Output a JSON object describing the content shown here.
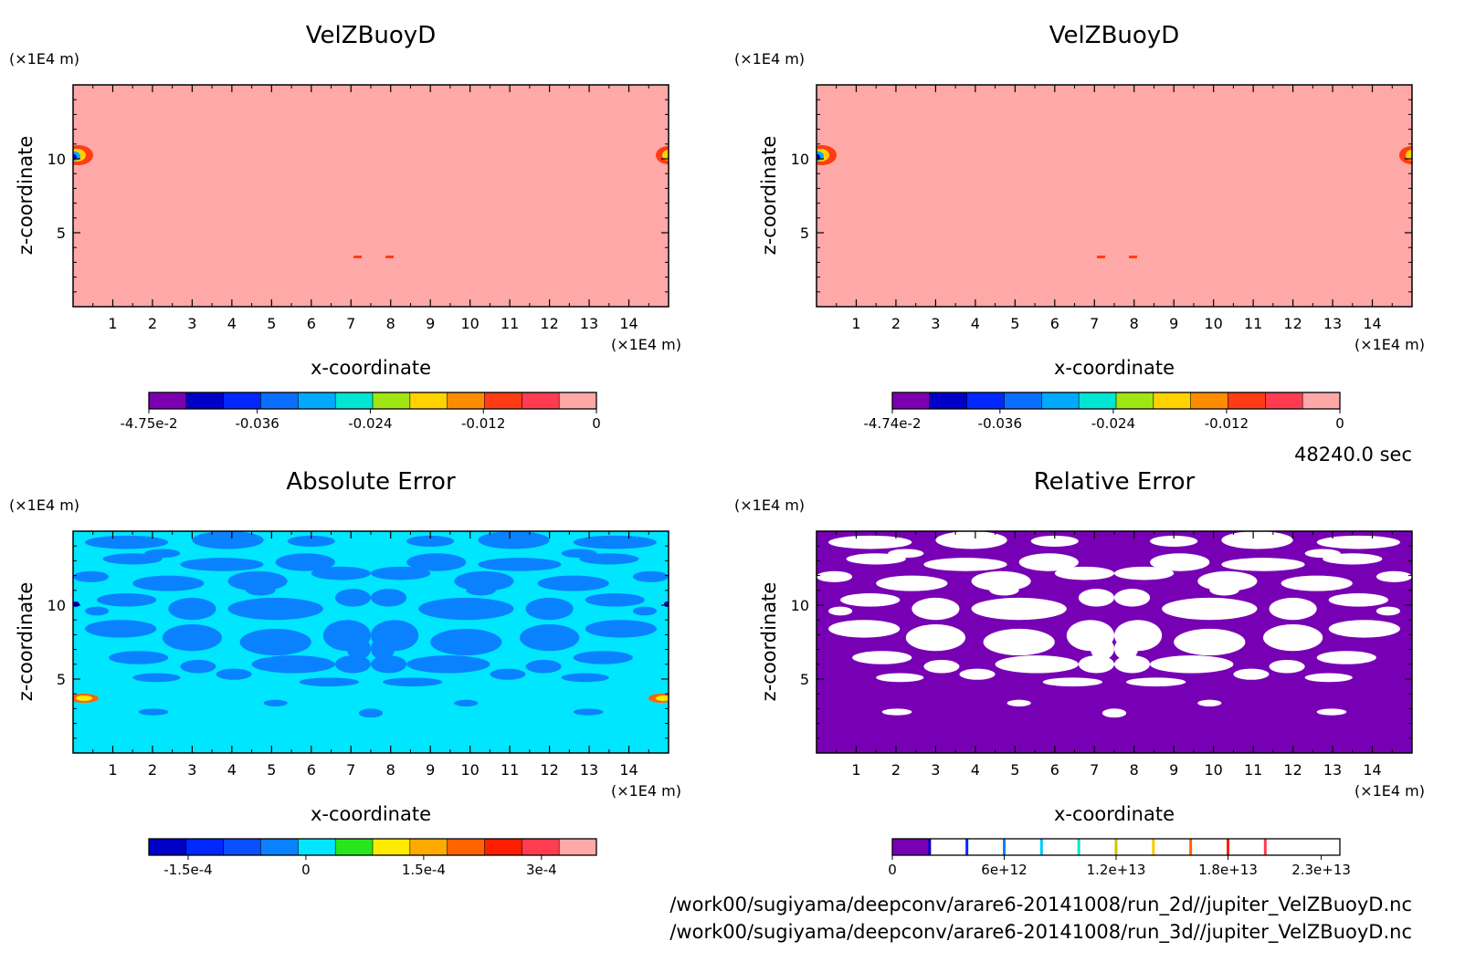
{
  "chart_data": [
    {
      "type": "heatmap",
      "title": "VelZBuoyD",
      "xlabel": "x-coordinate",
      "ylabel": "z-coordinate",
      "x_unit": "(×1E4 m)",
      "y_unit": "(×1E4 m)",
      "xlim": [
        0,
        15
      ],
      "ylim": [
        0,
        15
      ],
      "x_ticks": [
        "1",
        "2",
        "3",
        "4",
        "5",
        "6",
        "7",
        "8",
        "9",
        "10",
        "11",
        "12",
        "13",
        "14"
      ],
      "y_ticks": [
        "5",
        "10"
      ],
      "background_color": "#ffa8a8",
      "colorbar": {
        "colors": [
          "#7b00b0",
          "#0000c8",
          "#0028ff",
          "#0a6eff",
          "#00aaff",
          "#00e6d2",
          "#a0e614",
          "#ffd200",
          "#ff8c00",
          "#ff3c14",
          "#ff3c50",
          "#ffa8a8"
        ],
        "tick_labels": [
          "-4.75e-2",
          "-0.036",
          "-0.024",
          "-0.012",
          "0"
        ],
        "tick_values": [
          -0.0475,
          -0.036,
          -0.024,
          -0.012,
          0
        ]
      }
    },
    {
      "type": "heatmap",
      "title": "VelZBuoyD",
      "xlabel": "x-coordinate",
      "ylabel": "z-coordinate",
      "x_unit": "(×1E4 m)",
      "y_unit": "(×1E4 m)",
      "xlim": [
        0,
        15
      ],
      "ylim": [
        0,
        15
      ],
      "x_ticks": [
        "1",
        "2",
        "3",
        "4",
        "5",
        "6",
        "7",
        "8",
        "9",
        "10",
        "11",
        "12",
        "13",
        "14"
      ],
      "y_ticks": [
        "5",
        "10"
      ],
      "background_color": "#ffa8a8",
      "colorbar": {
        "colors": [
          "#7b00b0",
          "#0000c8",
          "#0028ff",
          "#0a6eff",
          "#00aaff",
          "#00e6d2",
          "#a0e614",
          "#ffd200",
          "#ff8c00",
          "#ff3c14",
          "#ff3c50",
          "#ffa8a8"
        ],
        "tick_labels": [
          "-4.74e-2",
          "-0.036",
          "-0.024",
          "-0.012",
          "0"
        ],
        "tick_values": [
          -0.0474,
          -0.036,
          -0.024,
          -0.012,
          0
        ]
      }
    },
    {
      "type": "heatmap",
      "title": "Absolute Error",
      "xlabel": "x-coordinate",
      "ylabel": "z-coordinate",
      "x_unit": "(×1E4 m)",
      "y_unit": "(×1E4 m)",
      "xlim": [
        0,
        15
      ],
      "ylim": [
        0,
        15
      ],
      "x_ticks": [
        "1",
        "2",
        "3",
        "4",
        "5",
        "6",
        "7",
        "8",
        "9",
        "10",
        "11",
        "12",
        "13",
        "14"
      ],
      "y_ticks": [
        "5",
        "10"
      ],
      "background_color": "#00e6ff",
      "patch_color": "#0a82ff",
      "colorbar": {
        "colors": [
          "#0000c8",
          "#0028ff",
          "#0a50ff",
          "#0a82ff",
          "#00e6ff",
          "#28e61e",
          "#ffeb00",
          "#ffaa00",
          "#ff6400",
          "#ff1e00",
          "#ff3c50",
          "#ffa8a8"
        ],
        "tick_labels": [
          "-1.5e-4",
          "0",
          "1.5e-4",
          "3e-4"
        ],
        "tick_values": [
          -0.00015,
          0,
          0.00015,
          0.0003
        ]
      }
    },
    {
      "type": "heatmap",
      "title": "Relative Error",
      "xlabel": "x-coordinate",
      "ylabel": "z-coordinate",
      "x_unit": "(×1E4 m)",
      "y_unit": "(×1E4 m)",
      "xlim": [
        0,
        15
      ],
      "ylim": [
        0,
        15
      ],
      "x_ticks": [
        "1",
        "2",
        "3",
        "4",
        "5",
        "6",
        "7",
        "8",
        "9",
        "10",
        "11",
        "12",
        "13",
        "14"
      ],
      "y_ticks": [
        "5",
        "10"
      ],
      "background_color": "#7800b4",
      "patch_color": "#ffffff",
      "colorbar": {
        "colors": [
          "#7800b4",
          "#ffffff",
          "#ffffff",
          "#ffffff",
          "#ffffff",
          "#ffffff",
          "#ffffff",
          "#ffffff",
          "#ffffff",
          "#ffffff",
          "#ffffff",
          "#ffffff"
        ],
        "separator_colors": [
          "#0000c8",
          "#0028ff",
          "#0a82ff",
          "#00c8ff",
          "#00e6d2",
          "#c8c800",
          "#ffc800",
          "#ff6400",
          "#ff1e00",
          "#ff3c50"
        ],
        "tick_labels": [
          "0",
          "6e+12",
          "1.2e+13",
          "1.8e+13",
          "2.3e+13"
        ],
        "tick_values": [
          0,
          6000000000000.0,
          12000000000000.0,
          18000000000000.0,
          23000000000000.0
        ]
      }
    }
  ],
  "time_label": "48240.0 sec",
  "footer_lines": [
    "/work00/sugiyama/deepconv/arare6-20141008/run_2d//jupiter_VelZBuoyD.nc",
    "/work00/sugiyama/deepconv/arare6-20141008/run_3d//jupiter_VelZBuoyD.nc"
  ]
}
